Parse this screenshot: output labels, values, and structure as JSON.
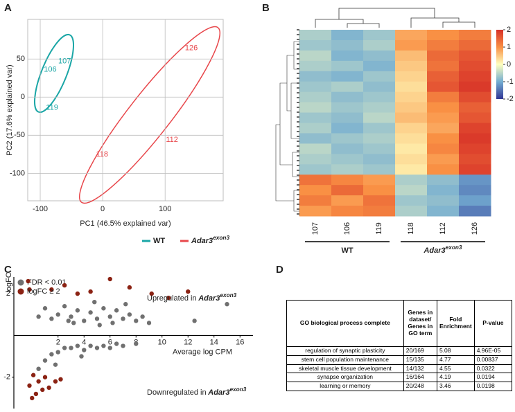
{
  "panel_labels": [
    "A",
    "B",
    "C",
    "D"
  ],
  "chart_data": [
    {
      "type": "scatter",
      "xlabel": "PC1 (46.5% explained var)",
      "ylabel": "PC2 (17.6% explained var)",
      "xlim": [
        -120,
        193
      ],
      "ylim": [
        -136,
        102
      ],
      "xticks": [
        -100,
        0,
        100
      ],
      "yticks": [
        50,
        0,
        -50,
        -100
      ],
      "grid": true,
      "series": [
        {
          "name": "WT",
          "color": "#1aa6a6",
          "labels": [
            "107",
            "106",
            "119"
          ],
          "x": [
            -61,
            -84,
            -81
          ],
          "values": [
            47,
            36,
            -14
          ]
        },
        {
          "name": "Adar3",
          "name_superscript": "exon3",
          "color": "#e8474b",
          "labels": [
            "126",
            "112",
            "118"
          ],
          "x": [
            142,
            111,
            -1
          ],
          "values": [
            64,
            -56,
            -75
          ]
        }
      ]
    },
    {
      "type": "heatmap",
      "categories": [
        "107",
        "106",
        "119",
        "118",
        "112",
        "126"
      ],
      "groups": [
        {
          "name": "WT"
        },
        {
          "name": "Adar3",
          "name_superscript": "exon3"
        }
      ],
      "zlim": [
        -2,
        2
      ],
      "zticks": [
        2,
        1,
        0,
        -1,
        -2
      ],
      "colorscale": [
        "#313695",
        "#74add1",
        "#ffffbf",
        "#f99044",
        "#d73027"
      ],
      "values": [
        [
          -0.6,
          -0.9,
          -0.7,
          0.8,
          1.0,
          1.2
        ],
        [
          -0.7,
          -0.8,
          -0.6,
          0.9,
          1.2,
          1.4
        ],
        [
          -0.5,
          -0.9,
          -0.8,
          0.6,
          1.4,
          1.6
        ],
        [
          -0.6,
          -0.7,
          -0.9,
          0.5,
          1.3,
          1.7
        ],
        [
          -0.8,
          -0.9,
          -0.7,
          0.4,
          1.5,
          1.8
        ],
        [
          -0.7,
          -0.6,
          -0.8,
          0.3,
          1.6,
          1.9
        ],
        [
          -0.6,
          -0.8,
          -0.7,
          0.4,
          1.2,
          1.7
        ],
        [
          -0.5,
          -0.7,
          -0.6,
          0.5,
          1.0,
          1.5
        ],
        [
          -0.7,
          -0.8,
          -0.5,
          0.6,
          0.9,
          1.6
        ],
        [
          -0.6,
          -0.9,
          -0.7,
          0.4,
          0.8,
          1.8
        ],
        [
          -0.8,
          -0.7,
          -0.6,
          0.3,
          1.0,
          1.9
        ],
        [
          -0.5,
          -0.8,
          -0.7,
          0.2,
          1.1,
          1.8
        ],
        [
          -0.6,
          -0.7,
          -0.8,
          0.3,
          0.9,
          1.7
        ],
        [
          -0.7,
          -0.6,
          -0.7,
          0.2,
          1.0,
          1.8
        ],
        [
          1.3,
          1.1,
          0.9,
          -0.6,
          -0.8,
          -1.2
        ],
        [
          1.0,
          1.4,
          1.0,
          -0.5,
          -0.9,
          -1.3
        ],
        [
          1.2,
          0.9,
          1.3,
          -0.7,
          -0.8,
          -1.1
        ],
        [
          0.9,
          1.1,
          1.2,
          -0.6,
          -0.9,
          -1.4
        ]
      ]
    },
    {
      "type": "scatter",
      "xlabel": "Average log CPM",
      "ylabel": "logFC",
      "xlim": [
        -1.4,
        17
      ],
      "ylim": [
        -3.5,
        2.8
      ],
      "xticks": [
        2,
        4,
        6,
        8,
        10,
        12,
        14,
        16
      ],
      "yticks": [
        2,
        -2
      ],
      "annotations": [
        {
          "text": "Upregulated in",
          "emphasis": "Adar3",
          "superscript": "exon3"
        },
        {
          "text": "Downregulated in",
          "emphasis": "Adar3",
          "superscript": "exon3"
        }
      ],
      "series": [
        {
          "name": "FDR < 0.01",
          "color": "#707070",
          "x": [
            0.5,
            1,
            1.5,
            2,
            2.5,
            3,
            3.5,
            4,
            4.5,
            5,
            5.5,
            6,
            6.5,
            7,
            7.5,
            8,
            8.5,
            9,
            3.2,
            5.2,
            6.2,
            7.2,
            4.8,
            2.8,
            0.5,
            1,
            1.5,
            2,
            2.5,
            3,
            3.5,
            4,
            4.5,
            5,
            5.5,
            6,
            6.5,
            7,
            8,
            1.8,
            3.8,
            12.5,
            15
          ],
          "values": [
            0.9,
            1.3,
            0.8,
            1.0,
            1.4,
            0.9,
            1.2,
            0.7,
            1.1,
            0.8,
            1.3,
            0.9,
            1.2,
            0.8,
            1.0,
            0.7,
            0.9,
            0.6,
            0.6,
            0.5,
            0.6,
            1.5,
            1.6,
            0.7,
            -1.6,
            -1.2,
            -0.9,
            -0.8,
            -0.6,
            -0.6,
            -0.5,
            -0.7,
            -0.5,
            -0.6,
            -0.5,
            -0.6,
            -0.4,
            -0.5,
            -0.4,
            -1.4,
            -1.0,
            0.7,
            1.5
          ]
        },
        {
          "name": "logFC ≥ 2",
          "color": "#8b2213",
          "x": [
            -0.3,
            -0.2,
            1.5,
            2.5,
            3.5,
            4.5,
            6,
            7.5,
            9.2,
            10.5,
            12,
            -0.2,
            0,
            0.3,
            0.5,
            0.8,
            1,
            1.3,
            1.8,
            2.2,
            0.1
          ],
          "values": [
            2.6,
            2.2,
            2.2,
            2.4,
            2.0,
            2.1,
            2.7,
            2.3,
            2.0,
            1.8,
            2.1,
            -2.4,
            -3.0,
            -2.8,
            -2.2,
            -2.6,
            -2.0,
            -2.5,
            -2.2,
            -2.1,
            -1.9
          ]
        }
      ]
    }
  ],
  "table": {
    "header": [
      "GO biological process complete",
      "Genes in dataset/ Genes in GO term",
      "Fold Enrichment",
      "P-value"
    ],
    "rows": [
      [
        "regulation of synaptic plasticity",
        "20/169",
        "5.08",
        "4.96E-05"
      ],
      [
        "stem cell population maintenance",
        "15/135",
        "4.77",
        "0.00837"
      ],
      [
        "skeletal muscle tissue development",
        "14/132",
        "4.55",
        "0.0322"
      ],
      [
        "synapse organization",
        "16/164",
        "4.19",
        "0.0194"
      ],
      [
        "learning or memory",
        "20/248",
        "3.46",
        "0.0198"
      ]
    ]
  }
}
